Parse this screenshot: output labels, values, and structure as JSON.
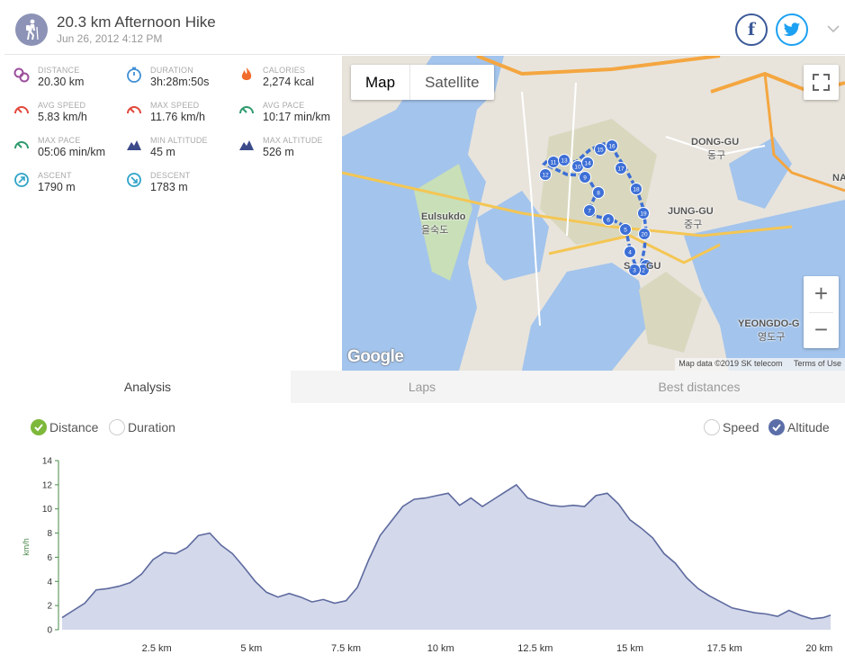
{
  "header": {
    "title": "20.3 km Afternoon Hike",
    "date": "Jun 26, 2012 4:12 PM",
    "facebook_glyph": "f"
  },
  "stats": [
    {
      "label": "DISTANCE",
      "value": "20.30 km",
      "icon": "distance-pin-icon",
      "color": "#9c4f9c"
    },
    {
      "label": "DURATION",
      "value": "3h:28m:50s",
      "icon": "stopwatch-icon",
      "color": "#3f8fd6"
    },
    {
      "label": "CALORIES",
      "value": "2,274 kcal",
      "icon": "flame-icon",
      "color": "#f06b2c"
    },
    {
      "label": "AVG SPEED",
      "value": "5.83 km/h",
      "icon": "speedometer-icon",
      "color": "#e2473a"
    },
    {
      "label": "MAX SPEED",
      "value": "11.76 km/h",
      "icon": "speedometer-icon",
      "color": "#e2473a"
    },
    {
      "label": "AVG PACE",
      "value": "10:17 min/km",
      "icon": "speedometer-icon",
      "color": "#2e9a6e"
    },
    {
      "label": "MAX PACE",
      "value": "05:06 min/km",
      "icon": "speedometer-icon",
      "color": "#2e9a6e"
    },
    {
      "label": "MIN ALTITUDE",
      "value": "45 m",
      "icon": "mountain-icon",
      "color": "#3c4a8a"
    },
    {
      "label": "MAX ALTITUDE",
      "value": "526 m",
      "icon": "mountain-icon",
      "color": "#3c4a8a"
    },
    {
      "label": "ASCENT",
      "value": "1790 m",
      "icon": "ascent-icon",
      "color": "#2fa3c9"
    },
    {
      "label": "DESCENT",
      "value": "1783 m",
      "icon": "descent-icon",
      "color": "#2fa3c9"
    }
  ],
  "map": {
    "type_map": "Map",
    "type_satellite": "Satellite",
    "zoom_in": "+",
    "zoom_out": "−",
    "logo": "Google",
    "attribution": "Map data ©2019 SK telecom",
    "terms": "Terms of Use",
    "places": [
      {
        "name": "Eulsukdo",
        "name_local": "을숙도"
      },
      {
        "name": "DONG-GU",
        "name_local": "동구"
      },
      {
        "name": "JUNG-GU",
        "name_local": "중구"
      },
      {
        "name": "YEONGDO-G",
        "name_local": "영도구"
      },
      {
        "name": "NA",
        "name_local": ""
      },
      {
        "name": "S",
        "name_local": ""
      },
      {
        "name": "GU",
        "name_local": ""
      }
    ],
    "markers": [
      "1",
      "2",
      "3",
      "4",
      "5",
      "6",
      "7",
      "8",
      "9",
      "10",
      "11",
      "12",
      "13",
      "14",
      "15",
      "16",
      "17",
      "18",
      "19",
      "20"
    ]
  },
  "tabs": [
    {
      "label": "Analysis",
      "active": true
    },
    {
      "label": "Laps",
      "active": false
    },
    {
      "label": "Best distances",
      "active": false
    }
  ],
  "toggles": {
    "distance": "Distance",
    "duration": "Duration",
    "speed": "Speed",
    "altitude": "Altitude"
  },
  "chart_data": {
    "type": "area",
    "ylabel": "km/h",
    "ylim": [
      0,
      14
    ],
    "yticks": [
      0,
      2,
      4,
      6,
      8,
      10,
      12,
      14
    ],
    "xlim": [
      0,
      20.3
    ],
    "xticks": [
      2.5,
      5,
      7.5,
      10,
      12.5,
      15,
      17.5,
      20
    ],
    "xtick_labels": [
      "2.5 km",
      "5 km",
      "7.5 km",
      "10 km",
      "12.5 km",
      "15 km",
      "17.5 km",
      "20 km"
    ],
    "colors": {
      "fill": "#d3d8eb",
      "line": "#5d6a9e",
      "axis": "#4a8a4a"
    },
    "series": [
      {
        "name": "Altitude",
        "x": [
          0,
          0.3,
          0.6,
          0.9,
          1.2,
          1.5,
          1.8,
          2.1,
          2.4,
          2.7,
          3.0,
          3.3,
          3.6,
          3.9,
          4.2,
          4.5,
          4.8,
          5.1,
          5.4,
          5.7,
          6.0,
          6.3,
          6.6,
          6.9,
          7.2,
          7.5,
          7.8,
          8.1,
          8.4,
          8.7,
          9.0,
          9.3,
          9.6,
          9.9,
          10.2,
          10.5,
          10.8,
          11.1,
          11.4,
          11.7,
          12.0,
          12.3,
          12.6,
          12.9,
          13.2,
          13.5,
          13.8,
          14.1,
          14.4,
          14.7,
          15.0,
          15.3,
          15.6,
          15.9,
          16.2,
          16.5,
          16.8,
          17.1,
          17.4,
          17.7,
          18.0,
          18.3,
          18.6,
          18.9,
          19.2,
          19.5,
          19.8,
          20.1,
          20.3
        ],
        "y": [
          1.0,
          1.6,
          2.2,
          3.3,
          3.4,
          3.6,
          3.9,
          4.6,
          5.8,
          6.4,
          6.3,
          6.8,
          7.8,
          8.0,
          7.0,
          6.3,
          5.2,
          4.0,
          3.1,
          2.7,
          3.0,
          2.7,
          2.3,
          2.5,
          2.2,
          2.4,
          3.5,
          5.8,
          7.8,
          9.0,
          10.2,
          10.8,
          10.9,
          11.1,
          11.3,
          10.3,
          10.9,
          10.2,
          10.8,
          11.4,
          12.0,
          10.9,
          10.6,
          10.3,
          10.2,
          10.3,
          10.2,
          11.1,
          11.3,
          10.4,
          9.1,
          8.4,
          7.6,
          6.3,
          5.5,
          4.3,
          3.4,
          2.8,
          2.3,
          1.8,
          1.6,
          1.4,
          1.3,
          1.1,
          1.6,
          1.2,
          0.9,
          1.0,
          1.2
        ]
      }
    ]
  }
}
